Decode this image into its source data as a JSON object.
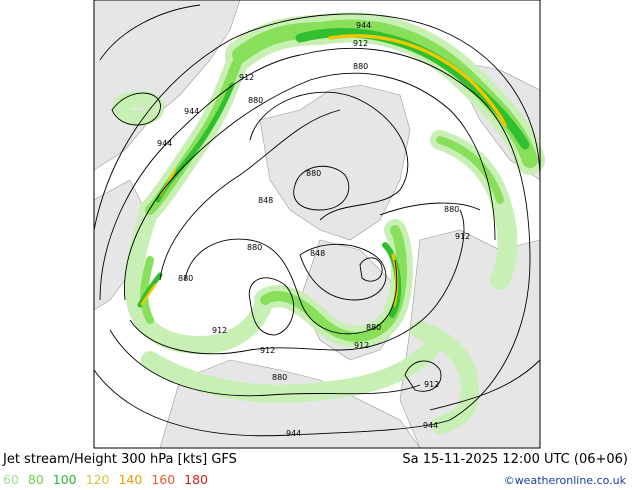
{
  "map": {
    "contour_labels": [
      {
        "text": "944"
      },
      {
        "text": "912"
      },
      {
        "text": "880"
      },
      {
        "text": "912"
      },
      {
        "text": "880"
      },
      {
        "text": "944"
      },
      {
        "text": "944"
      },
      {
        "text": "880"
      },
      {
        "text": "880"
      },
      {
        "text": "848"
      },
      {
        "text": "880"
      },
      {
        "text": "848"
      },
      {
        "text": "880"
      },
      {
        "text": "912"
      },
      {
        "text": "880"
      },
      {
        "text": "880"
      },
      {
        "text": "912"
      },
      {
        "text": "912"
      },
      {
        "text": "912"
      },
      {
        "text": "912"
      },
      {
        "text": "944"
      },
      {
        "text": "944"
      }
    ],
    "colors": {
      "ocean": "#ffffff",
      "land": "#e6e6e6",
      "jet_60": "#c8f0b4",
      "jet_80": "#88e05a",
      "jet_100": "#2fbf2f",
      "jet_120": "#b4c800",
      "jet_140": "#f0c800",
      "frame": "#000000"
    }
  },
  "footer": {
    "title": "Jet stream/Height 300 hPa [kts] GFS",
    "valid_time": "Sa 15-11-2025 12:00 UTC (06+06)",
    "legend": [
      {
        "label": "60",
        "color": "#9be68c"
      },
      {
        "label": "80",
        "color": "#6ad24a"
      },
      {
        "label": "100",
        "color": "#2db52d"
      },
      {
        "label": "120",
        "color": "#d2c83c"
      },
      {
        "label": "140",
        "color": "#e6a000"
      },
      {
        "label": "160",
        "color": "#e65a32"
      },
      {
        "label": "180",
        "color": "#d21e1e"
      }
    ],
    "credit": "©weatheronline.co.uk"
  }
}
